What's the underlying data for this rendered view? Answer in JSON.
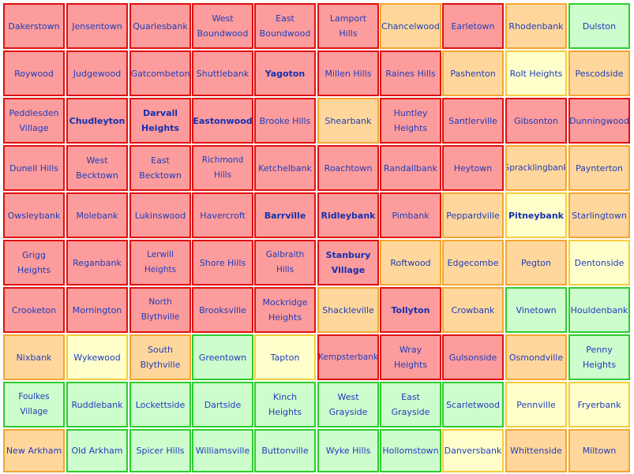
{
  "map": {
    "tile_colors": {
      "red": {
        "fill": "#fd9c9c",
        "border": "#e01010"
      },
      "orange": {
        "fill": "#ffd79c",
        "border": "#f3a630"
      },
      "yellow": {
        "fill": "#ffffcc",
        "border": "#f2ce3a"
      },
      "green": {
        "fill": "#cdfccd",
        "border": "#2dcd2d"
      }
    },
    "rows": [
      [
        {
          "name": "Dakerstown",
          "color": "red"
        },
        {
          "name": "Jensentown",
          "color": "red"
        },
        {
          "name": "Quarlesbank",
          "color": "red"
        },
        {
          "name": "West Boundwood",
          "color": "red"
        },
        {
          "name": "East Boundwood",
          "color": "red"
        },
        {
          "name": "Lamport Hills",
          "color": "red"
        },
        {
          "name": "Chancelwood",
          "color": "orange"
        },
        {
          "name": "Earletown",
          "color": "red"
        },
        {
          "name": "Rhodenbank",
          "color": "orange"
        },
        {
          "name": "Dulston",
          "color": "green"
        }
      ],
      [
        {
          "name": "Roywood",
          "color": "red"
        },
        {
          "name": "Judgewood",
          "color": "red"
        },
        {
          "name": "Gatcombeton",
          "color": "red"
        },
        {
          "name": "Shuttlebank",
          "color": "red"
        },
        {
          "name": "Yagoton",
          "color": "red",
          "bold": true
        },
        {
          "name": "Millen Hills",
          "color": "red"
        },
        {
          "name": "Raines Hills",
          "color": "red"
        },
        {
          "name": "Pashenton",
          "color": "orange"
        },
        {
          "name": "Rolt Heights",
          "color": "yellow"
        },
        {
          "name": "Pescodside",
          "color": "orange"
        }
      ],
      [
        {
          "name": "Peddlesden Village",
          "color": "red"
        },
        {
          "name": "Chudleyton",
          "color": "red",
          "bold": true
        },
        {
          "name": "Darvall Heights",
          "color": "red",
          "bold": true
        },
        {
          "name": "Eastonwood",
          "color": "red",
          "bold": true
        },
        {
          "name": "Brooke Hills",
          "color": "red"
        },
        {
          "name": "Shearbank",
          "color": "orange"
        },
        {
          "name": "Huntley Heights",
          "color": "red"
        },
        {
          "name": "Santlerville",
          "color": "red"
        },
        {
          "name": "Gibsonton",
          "color": "red"
        },
        {
          "name": "Dunningwood",
          "color": "red"
        }
      ],
      [
        {
          "name": "Dunell Hills",
          "color": "red"
        },
        {
          "name": "West Becktown",
          "color": "red"
        },
        {
          "name": "East Becktown",
          "color": "red"
        },
        {
          "name": "Richmond Hills",
          "color": "red"
        },
        {
          "name": "Ketchelbank",
          "color": "red"
        },
        {
          "name": "Roachtown",
          "color": "red"
        },
        {
          "name": "Randallbank",
          "color": "red"
        },
        {
          "name": "Heytown",
          "color": "red"
        },
        {
          "name": "Spracklingbank",
          "color": "orange"
        },
        {
          "name": "Paynterton",
          "color": "orange"
        }
      ],
      [
        {
          "name": "Owsleybank",
          "color": "red"
        },
        {
          "name": "Molebank",
          "color": "red"
        },
        {
          "name": "Lukinswood",
          "color": "red"
        },
        {
          "name": "Havercroft",
          "color": "red"
        },
        {
          "name": "Barrville",
          "color": "red",
          "bold": true
        },
        {
          "name": "Ridleybank",
          "color": "red",
          "bold": true
        },
        {
          "name": "Pimbank",
          "color": "red"
        },
        {
          "name": "Peppardville",
          "color": "orange"
        },
        {
          "name": "Pitneybank",
          "color": "yellow",
          "bold": true
        },
        {
          "name": "Starlingtown",
          "color": "orange"
        }
      ],
      [
        {
          "name": "Grigg Heights",
          "color": "red"
        },
        {
          "name": "Reganbank",
          "color": "red"
        },
        {
          "name": "Lerwill Heights",
          "color": "red"
        },
        {
          "name": "Shore Hills",
          "color": "red"
        },
        {
          "name": "Galbraith Hills",
          "color": "red"
        },
        {
          "name": "Stanbury Village",
          "color": "red",
          "bold": true
        },
        {
          "name": "Roftwood",
          "color": "orange"
        },
        {
          "name": "Edgecombe",
          "color": "orange"
        },
        {
          "name": "Pegton",
          "color": "orange"
        },
        {
          "name": "Dentonside",
          "color": "yellow"
        }
      ],
      [
        {
          "name": "Crooketon",
          "color": "red"
        },
        {
          "name": "Mornington",
          "color": "red"
        },
        {
          "name": "North Blythville",
          "color": "red"
        },
        {
          "name": "Brooksville",
          "color": "red"
        },
        {
          "name": "Mockridge Heights",
          "color": "red"
        },
        {
          "name": "Shackleville",
          "color": "orange"
        },
        {
          "name": "Tollyton",
          "color": "red",
          "bold": true
        },
        {
          "name": "Crowbank",
          "color": "orange"
        },
        {
          "name": "Vinetown",
          "color": "green"
        },
        {
          "name": "Houldenbank",
          "color": "green"
        }
      ],
      [
        {
          "name": "Nixbank",
          "color": "orange"
        },
        {
          "name": "Wykewood",
          "color": "yellow"
        },
        {
          "name": "South Blythville",
          "color": "orange"
        },
        {
          "name": "Greentown",
          "color": "green"
        },
        {
          "name": "Tapton",
          "color": "yellow"
        },
        {
          "name": "Kempsterbank",
          "color": "red"
        },
        {
          "name": "Wray Heights",
          "color": "red"
        },
        {
          "name": "Gulsonside",
          "color": "red"
        },
        {
          "name": "Osmondville",
          "color": "orange"
        },
        {
          "name": "Penny Heights",
          "color": "green"
        }
      ],
      [
        {
          "name": "Foulkes Village",
          "color": "green"
        },
        {
          "name": "Ruddlebank",
          "color": "green"
        },
        {
          "name": "Lockettside",
          "color": "green"
        },
        {
          "name": "Dartside",
          "color": "green"
        },
        {
          "name": "Kinch Heights",
          "color": "green"
        },
        {
          "name": "West Grayside",
          "color": "green"
        },
        {
          "name": "East Grayside",
          "color": "green"
        },
        {
          "name": "Scarletwood",
          "color": "green"
        },
        {
          "name": "Pennville",
          "color": "yellow"
        },
        {
          "name": "Fryerbank",
          "color": "yellow"
        }
      ],
      [
        {
          "name": "New Arkham",
          "color": "orange"
        },
        {
          "name": "Old Arkham",
          "color": "green"
        },
        {
          "name": "Spicer Hills",
          "color": "green"
        },
        {
          "name": "Williamsville",
          "color": "green"
        },
        {
          "name": "Buttonville",
          "color": "green"
        },
        {
          "name": "Wyke Hills",
          "color": "green"
        },
        {
          "name": "Hollomstown",
          "color": "green"
        },
        {
          "name": "Danversbank",
          "color": "yellow"
        },
        {
          "name": "Whittenside",
          "color": "orange"
        },
        {
          "name": "Miltown",
          "color": "orange"
        }
      ]
    ]
  }
}
